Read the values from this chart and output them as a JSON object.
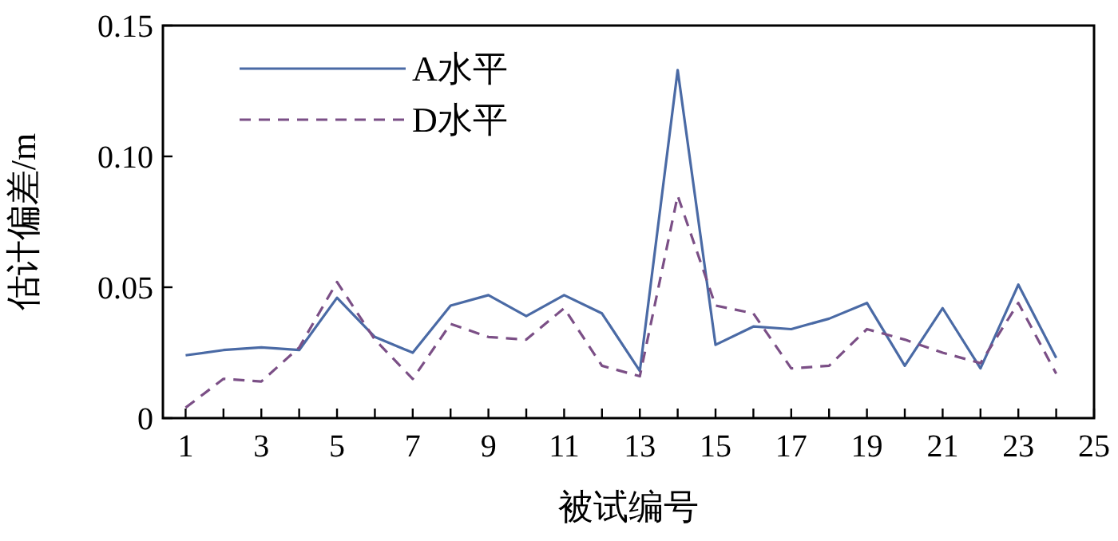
{
  "chart_data": {
    "type": "line",
    "xlabel": "被试编号",
    "ylabel": "估计偏差/m",
    "x": [
      1,
      2,
      3,
      4,
      5,
      6,
      7,
      8,
      9,
      10,
      11,
      12,
      13,
      14,
      15,
      16,
      17,
      18,
      19,
      20,
      21,
      22,
      23,
      24
    ],
    "series": [
      {
        "name": "A水平",
        "color": "#4a6aa5",
        "line_style": "solid",
        "values": [
          0.024,
          0.026,
          0.027,
          0.026,
          0.046,
          0.031,
          0.025,
          0.043,
          0.047,
          0.039,
          0.047,
          0.04,
          0.018,
          0.133,
          0.028,
          0.035,
          0.034,
          0.038,
          0.044,
          0.02,
          0.042,
          0.019,
          0.051,
          0.023
        ]
      },
      {
        "name": "D水平",
        "color": "#7b4f86",
        "line_style": "dashed",
        "values": [
          0.004,
          0.015,
          0.014,
          0.027,
          0.052,
          0.03,
          0.015,
          0.036,
          0.031,
          0.03,
          0.042,
          0.02,
          0.016,
          0.085,
          0.043,
          0.04,
          0.019,
          0.02,
          0.034,
          0.03,
          0.025,
          0.021,
          0.044,
          0.017
        ]
      }
    ],
    "xlim": [
      0.4,
      25
    ],
    "xticks": [
      1,
      {
        "value": 2,
        "label": null
      },
      3,
      {
        "value": 4,
        "label": null
      },
      5,
      {
        "value": 6,
        "label": null
      },
      7,
      {
        "value": 8,
        "label": null
      },
      9,
      {
        "value": 10,
        "label": null
      },
      11,
      {
        "value": 12,
        "label": null
      },
      13,
      {
        "value": 14,
        "label": null
      },
      15,
      {
        "value": 16,
        "label": null
      },
      17,
      {
        "value": 18,
        "label": null
      },
      19,
      {
        "value": 20,
        "label": null
      },
      21,
      {
        "value": 22,
        "label": null
      },
      23,
      {
        "value": 24,
        "label": null
      },
      25
    ],
    "ylim": [
      0,
      0.15
    ],
    "yticks": [
      0,
      {
        "value": 0.05,
        "label": "0.05"
      },
      {
        "value": 0.1,
        "label": "0.10"
      },
      {
        "value": 0.15,
        "label": "0.15"
      }
    ],
    "legend": "top left",
    "grid": false,
    "marker": "none"
  }
}
